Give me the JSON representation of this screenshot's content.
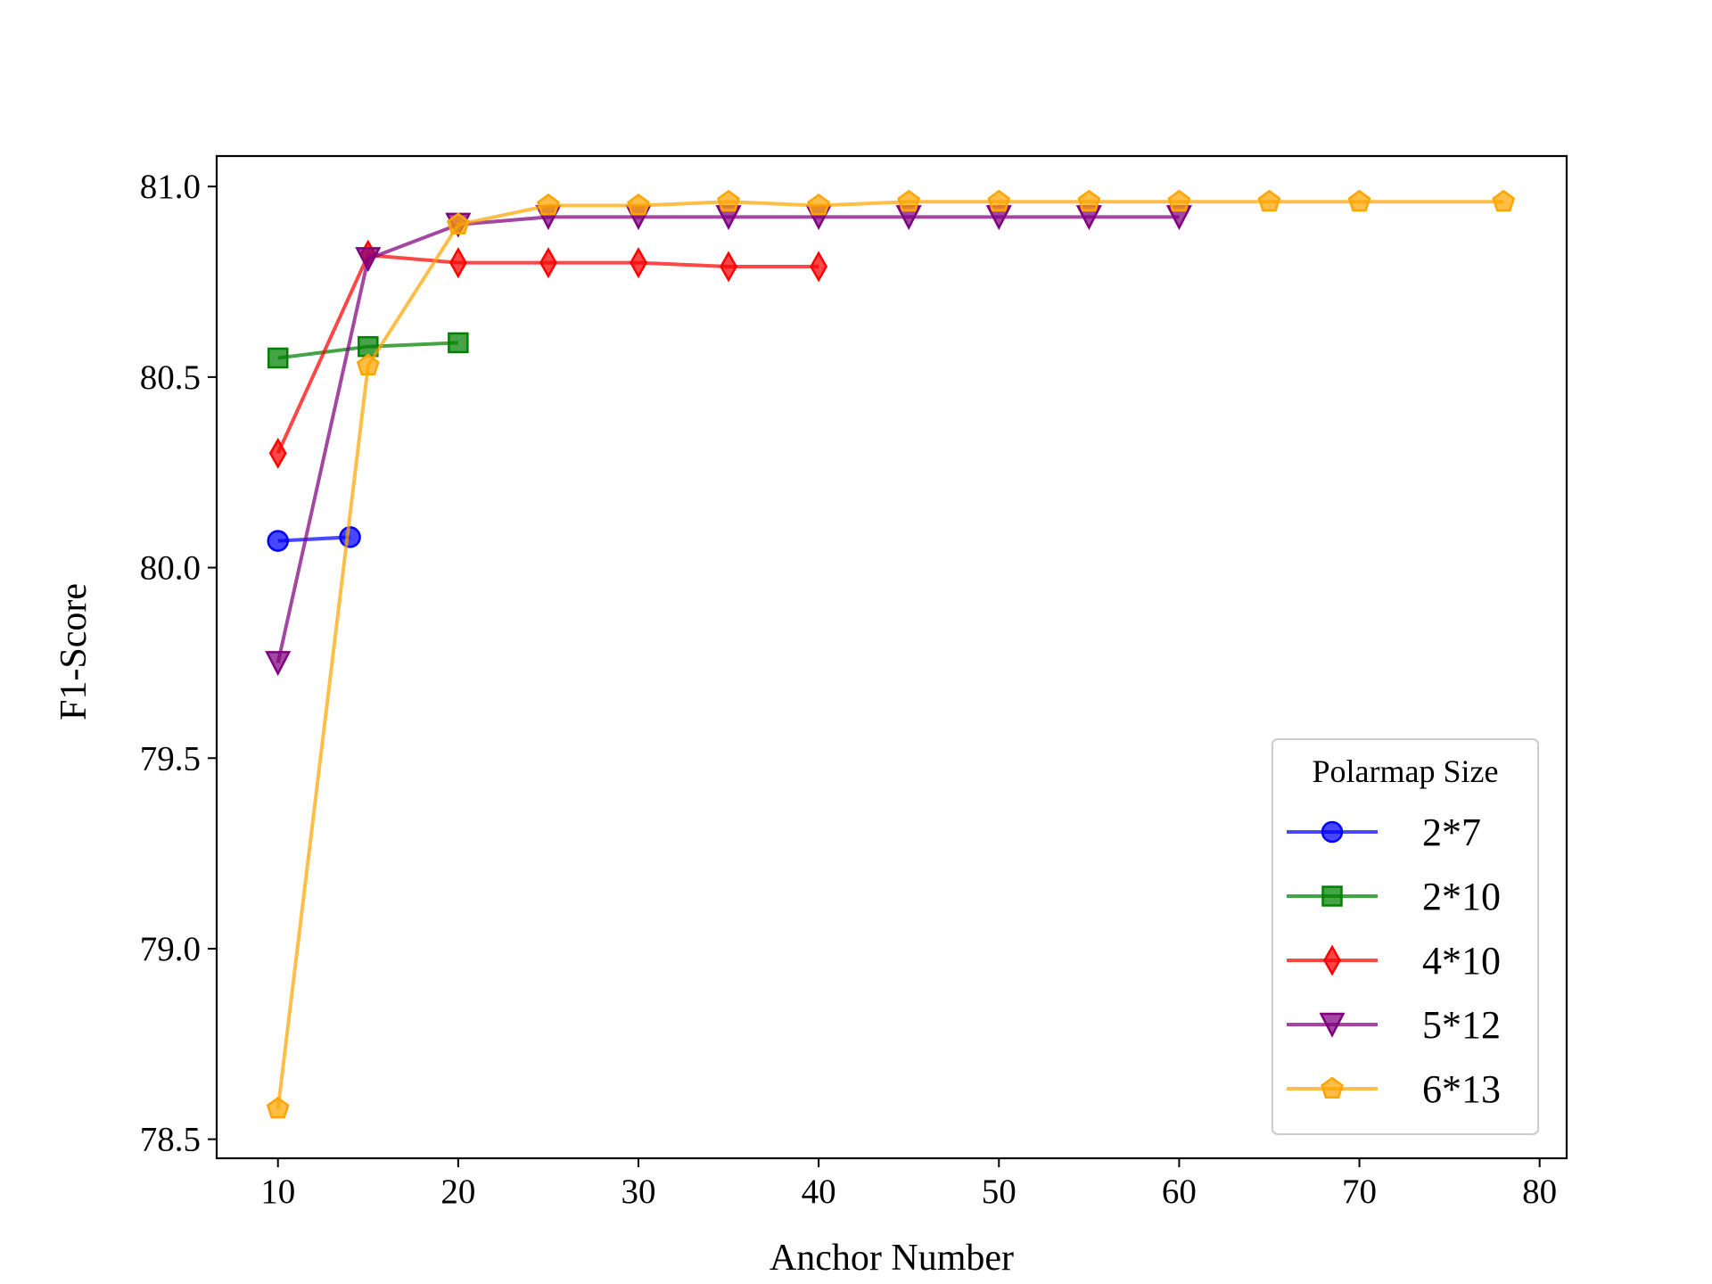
{
  "chart_data": {
    "type": "line",
    "title": "",
    "xlabel": "Anchor Number",
    "ylabel": "F1-Score",
    "xlim": [
      6.6,
      81.5
    ],
    "ylim": [
      78.45,
      81.08
    ],
    "xticks": [
      10,
      20,
      30,
      40,
      50,
      60,
      70,
      80
    ],
    "xtick_labels": [
      "10",
      "20",
      "30",
      "40",
      "50",
      "60",
      "70",
      "80"
    ],
    "yticks": [
      78.5,
      79.0,
      79.5,
      80.0,
      80.5,
      81.0
    ],
    "ytick_labels": [
      "78.5",
      "79.0",
      "79.5",
      "80.0",
      "80.5",
      "81.0"
    ],
    "grid": false,
    "legend": {
      "title": "Polarmap Size",
      "placement": "lower-right"
    },
    "series": [
      {
        "name": "2*7",
        "color": "#0000ff",
        "marker": "circle",
        "x": [
          10,
          14
        ],
        "y": [
          80.07,
          80.08
        ]
      },
      {
        "name": "2*10",
        "color": "#008000",
        "marker": "square",
        "x": [
          10,
          15,
          20
        ],
        "y": [
          80.55,
          80.58,
          80.59
        ]
      },
      {
        "name": "4*10",
        "color": "#ff0000",
        "marker": "thin-diamond",
        "x": [
          10,
          15,
          20,
          25,
          30,
          35,
          40
        ],
        "y": [
          80.3,
          80.82,
          80.8,
          80.8,
          80.8,
          80.79,
          80.79
        ]
      },
      {
        "name": "5*12",
        "color": "#800080",
        "marker": "triangle-down",
        "x": [
          10,
          15,
          20,
          25,
          30,
          35,
          40,
          45,
          50,
          55,
          60
        ],
        "y": [
          79.75,
          80.81,
          80.9,
          80.92,
          80.92,
          80.92,
          80.92,
          80.92,
          80.92,
          80.92,
          80.92
        ]
      },
      {
        "name": "6*13",
        "color": "#ffa500",
        "marker": "pentagon",
        "x": [
          10,
          15,
          20,
          25,
          30,
          35,
          40,
          45,
          50,
          55,
          60,
          65,
          70,
          78
        ],
        "y": [
          78.58,
          80.53,
          80.9,
          80.95,
          80.95,
          80.96,
          80.95,
          80.96,
          80.96,
          80.96,
          80.96,
          80.96,
          80.96,
          80.96
        ]
      }
    ]
  }
}
